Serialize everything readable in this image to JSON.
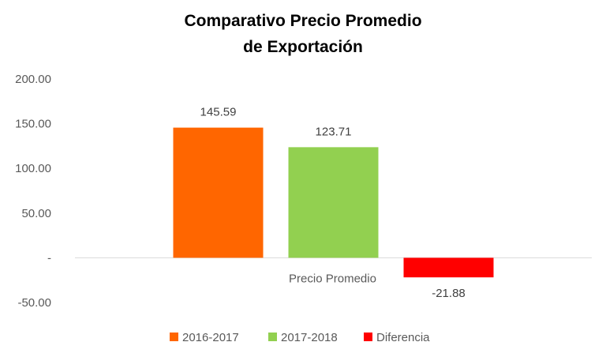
{
  "chart_data": {
    "type": "bar",
    "title_lines": [
      "Comparativo Precio Promedio",
      "de Exportación"
    ],
    "categories": [
      "Precio Promedio"
    ],
    "series": [
      {
        "name": "2016-2017",
        "values": [
          145.59
        ],
        "color": "#FF6600",
        "label": "145.59"
      },
      {
        "name": "2017-2018",
        "values": [
          123.71
        ],
        "color": "#92D050",
        "label": "123.71"
      },
      {
        "name": "Diferencia",
        "values": [
          -21.88
        ],
        "color": "#FF0000",
        "label": "-21.88"
      }
    ],
    "ylim": [
      -50,
      200
    ],
    "y_ticks": [
      {
        "value": 200,
        "label": "200.00"
      },
      {
        "value": 150,
        "label": "150.00"
      },
      {
        "value": 100,
        "label": "100.00"
      },
      {
        "value": 50,
        "label": "50.00"
      },
      {
        "value": 0,
        "label": "-"
      },
      {
        "value": -50,
        "label": "-50.00"
      }
    ],
    "xlabel": "",
    "ylabel": "",
    "grid": false,
    "legend_position": "bottom"
  }
}
